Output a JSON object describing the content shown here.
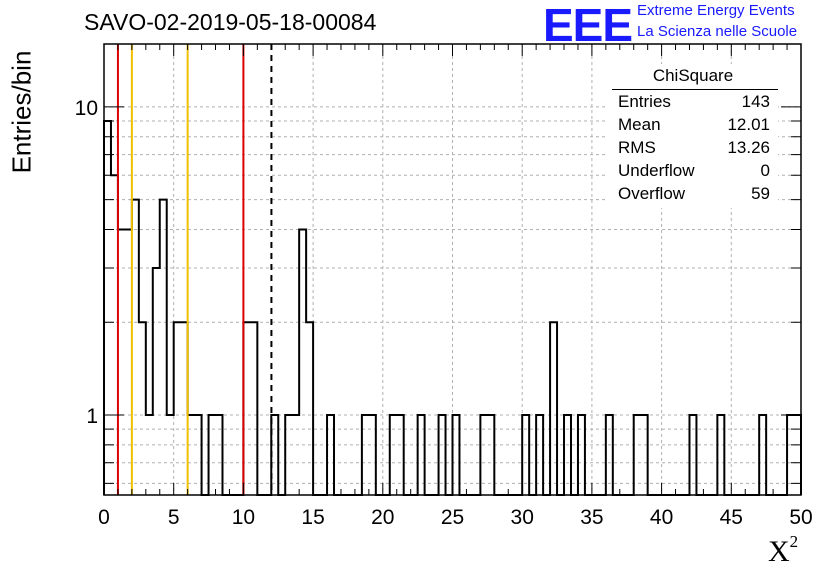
{
  "header": {
    "run_title": "SAVO-02-2019-05-18-00084",
    "logo_text": "EEE",
    "logo_line1": "Extreme Energy Events",
    "logo_line2": "La Scienza nelle Scuole",
    "logo_color": "#1a1aff"
  },
  "stats": {
    "title": "ChiSquare",
    "rows": [
      {
        "label": "Entries",
        "value": "143"
      },
      {
        "label": "Mean",
        "value": "12.01"
      },
      {
        "label": "RMS",
        "value": "13.26"
      },
      {
        "label": "Underflow",
        "value": "0"
      },
      {
        "label": "Overflow",
        "value": "59"
      }
    ]
  },
  "chart_data": {
    "type": "bar",
    "histogram_style": "step",
    "xlabel": "X²",
    "ylabel": "Entries/bin",
    "xlim": [
      0,
      50
    ],
    "ylim": [
      0.55,
      16
    ],
    "yscale": "log",
    "grid": true,
    "bin_width": 0.5,
    "x_ticks": [
      "0",
      "5",
      "10",
      "15",
      "20",
      "25",
      "30",
      "35",
      "40",
      "45",
      "50"
    ],
    "y_ticks": [
      "1",
      "10"
    ],
    "bins": [
      {
        "x": 0.0,
        "count": 9
      },
      {
        "x": 0.5,
        "count": 6
      },
      {
        "x": 1.0,
        "count": 4
      },
      {
        "x": 1.5,
        "count": 4
      },
      {
        "x": 2.0,
        "count": 5
      },
      {
        "x": 2.5,
        "count": 2
      },
      {
        "x": 3.0,
        "count": 1
      },
      {
        "x": 3.5,
        "count": 3
      },
      {
        "x": 4.0,
        "count": 5
      },
      {
        "x": 4.5,
        "count": 1
      },
      {
        "x": 5.0,
        "count": 2
      },
      {
        "x": 5.5,
        "count": 2
      },
      {
        "x": 6.0,
        "count": 1
      },
      {
        "x": 6.5,
        "count": 1
      },
      {
        "x": 7.5,
        "count": 1
      },
      {
        "x": 8.0,
        "count": 1
      },
      {
        "x": 10.0,
        "count": 2
      },
      {
        "x": 10.5,
        "count": 2
      },
      {
        "x": 12.0,
        "count": 1
      },
      {
        "x": 13.0,
        "count": 1
      },
      {
        "x": 13.5,
        "count": 1
      },
      {
        "x": 14.0,
        "count": 4
      },
      {
        "x": 14.5,
        "count": 2
      },
      {
        "x": 16.0,
        "count": 1
      },
      {
        "x": 18.5,
        "count": 1
      },
      {
        "x": 19.0,
        "count": 1
      },
      {
        "x": 20.5,
        "count": 1
      },
      {
        "x": 21.0,
        "count": 1
      },
      {
        "x": 22.5,
        "count": 1
      },
      {
        "x": 24.0,
        "count": 1
      },
      {
        "x": 25.0,
        "count": 1
      },
      {
        "x": 27.0,
        "count": 1
      },
      {
        "x": 27.5,
        "count": 1
      },
      {
        "x": 30.0,
        "count": 1
      },
      {
        "x": 31.0,
        "count": 1
      },
      {
        "x": 32.0,
        "count": 2
      },
      {
        "x": 33.0,
        "count": 1
      },
      {
        "x": 34.0,
        "count": 1
      },
      {
        "x": 36.0,
        "count": 1
      },
      {
        "x": 38.0,
        "count": 1
      },
      {
        "x": 38.5,
        "count": 1
      },
      {
        "x": 42.0,
        "count": 1
      },
      {
        "x": 44.0,
        "count": 1
      },
      {
        "x": 47.0,
        "count": 1
      },
      {
        "x": 49.0,
        "count": 1
      },
      {
        "x": 49.5,
        "count": 1
      }
    ],
    "reference_lines": [
      {
        "x": 1,
        "color": "#dd0000",
        "style": "solid"
      },
      {
        "x": 2,
        "color": "#f0c000",
        "style": "solid"
      },
      {
        "x": 6,
        "color": "#f0c000",
        "style": "solid"
      },
      {
        "x": 10,
        "color": "#dd0000",
        "style": "solid"
      },
      {
        "x": 12.01,
        "color": "#000000",
        "style": "dashed"
      }
    ]
  }
}
